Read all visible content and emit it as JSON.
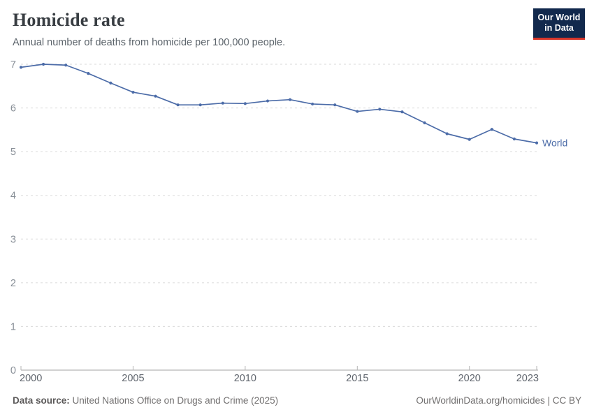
{
  "header": {
    "title": "Homicide rate",
    "subtitle": "Annual number of deaths from homicide per 100,000 people."
  },
  "logo": {
    "line1": "Our World",
    "line2": "in Data",
    "bg_color": "#12294d",
    "accent_color": "#d8352a"
  },
  "chart_data": {
    "type": "line",
    "title": "Homicide rate",
    "xlabel": "",
    "ylabel": "Annual deaths from homicide per 100,000 people",
    "x": [
      2000,
      2001,
      2002,
      2003,
      2004,
      2005,
      2006,
      2007,
      2008,
      2009,
      2010,
      2011,
      2012,
      2013,
      2014,
      2015,
      2016,
      2017,
      2018,
      2019,
      2020,
      2021,
      2022,
      2023
    ],
    "series": [
      {
        "name": "World",
        "color": "#4c6ca8",
        "values": [
          6.93,
          7.0,
          6.98,
          6.79,
          6.57,
          6.36,
          6.27,
          6.07,
          6.07,
          6.11,
          6.1,
          6.16,
          6.19,
          6.09,
          6.07,
          5.92,
          5.97,
          5.91,
          5.66,
          5.41,
          5.28,
          5.51,
          5.29,
          5.2
        ]
      }
    ],
    "ylim": [
      0,
      7
    ],
    "yticks": [
      0,
      1,
      2,
      3,
      4,
      5,
      6,
      7
    ],
    "xticks": [
      2000,
      2005,
      2010,
      2015,
      2020,
      2023
    ],
    "grid": "horizontal-dashed",
    "legend_position": "end-of-line-label",
    "colors": {
      "gridline": "#dadada",
      "axis_line": "#a3a3a3",
      "tick_mark": "#b5b5b5",
      "y_tick_label": "#878e96",
      "x_tick_label": "#5f656d"
    }
  },
  "footer": {
    "source_label": "Data source:",
    "source_text": " United Nations Office on Drugs and Crime (2025)",
    "right_text": "OurWorldinData.org/homicides | CC BY"
  }
}
